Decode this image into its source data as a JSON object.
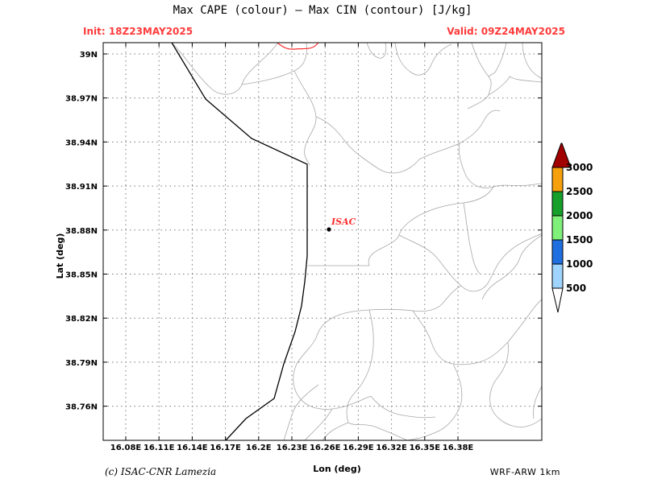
{
  "title": "Max CAPE (colour) — Max CIN (contour) [J/kg]",
  "init": "Init: 18Z23MAY2025",
  "valid": "Valid: 09Z24MAY2025",
  "credit": "(c) ISAC-CNR Lamezia",
  "model": "WRF-ARW 1km",
  "map": {
    "xlabel": "Lon (deg)",
    "ylabel": "Lat (deg)",
    "lon_ticks": [
      "16.08E",
      "16.11E",
      "16.14E",
      "16.17E",
      "16.2E",
      "16.23E",
      "16.26E",
      "16.29E",
      "16.32E",
      "16.35E",
      "16.38E"
    ],
    "lat_ticks": [
      "39N",
      "38.97N",
      "38.94N",
      "38.91N",
      "38.88N",
      "38.85N",
      "38.82N",
      "38.79N",
      "38.76N"
    ],
    "station": {
      "label": "ISAC",
      "color": "#ff2d2d"
    },
    "grid": true
  },
  "colorbar": {
    "levels": [
      "500",
      "1000",
      "1500",
      "2000",
      "2500",
      "3000"
    ],
    "colors": [
      "#ffffff",
      "#9fd4ff",
      "#1f6fe0",
      "#7ff07a",
      "#169f2a",
      "#f5a00c",
      "#a00000"
    ]
  },
  "colors": {
    "coast": "#000000",
    "roads": "#a8a8a8",
    "contour": "#ff2d2d",
    "grid": "#7a7a7a"
  }
}
